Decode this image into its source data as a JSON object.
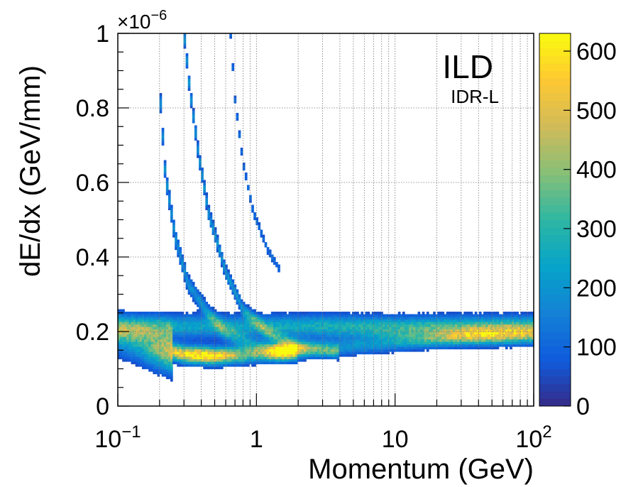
{
  "chart_data": {
    "type": "heatmap",
    "title": "",
    "xlabel": "Momentum (GeV)",
    "ylabel": "dE/dx (GeV/mm)",
    "x_scale": "log",
    "xlim": [
      0.1,
      100
    ],
    "ylim": [
      0,
      1e-06
    ],
    "y_multiplier_label": {
      "base": "×10",
      "exponent": "−6"
    },
    "x_ticks": [
      {
        "value": 0.1,
        "base": "10",
        "exponent": "−1"
      },
      {
        "value": 1,
        "base": "1",
        "exponent": ""
      },
      {
        "value": 10,
        "base": "10",
        "exponent": ""
      },
      {
        "value": 100,
        "base": "10",
        "exponent": "2"
      }
    ],
    "y_ticks": [
      {
        "value": 0,
        "label": "0"
      },
      {
        "value": 0.2,
        "label": "0.2"
      },
      {
        "value": 0.4,
        "label": "0.4"
      },
      {
        "value": 0.6,
        "label": "0.6"
      },
      {
        "value": 0.8,
        "label": "0.8"
      },
      {
        "value": 1.0,
        "label": "1"
      }
    ],
    "grid": true,
    "annotations": [
      {
        "text": "ILD",
        "position": "top-right"
      },
      {
        "text": "IDR-L",
        "position": "top-right"
      }
    ],
    "colorbar": {
      "range": [
        0,
        630
      ],
      "ticks": [
        "0",
        "100",
        "200",
        "300",
        "400",
        "500",
        "600"
      ],
      "palette": [
        "#352a87",
        "#0f5cdd",
        "#1481d6",
        "#06a4ca",
        "#2eb7a4",
        "#87bf77",
        "#d1bb59",
        "#fec832",
        "#f9fb0e"
      ]
    },
    "bands": [
      {
        "name": "",
        "points": [
          [
            0.1,
            0.21
          ],
          [
            0.2,
            0.215
          ],
          [
            0.5,
            0.215
          ],
          [
            1,
            0.215
          ],
          [
            3,
            0.215
          ],
          [
            10,
            0.21
          ],
          [
            30,
            0.21
          ],
          [
            100,
            0.21
          ]
        ]
      },
      {
        "name": "",
        "points": [
          [
            0.1,
            0.19
          ],
          [
            0.2,
            0.155
          ],
          [
            0.3,
            0.14
          ],
          [
            0.5,
            0.135
          ],
          [
            1,
            0.14
          ],
          [
            2,
            0.15
          ],
          [
            5,
            0.16
          ],
          [
            10,
            0.17
          ],
          [
            30,
            0.185
          ],
          [
            100,
            0.19
          ]
        ]
      },
      {
        "name": "",
        "points": [
          [
            0.3,
            1.0
          ],
          [
            0.33,
            0.85
          ],
          [
            0.38,
            0.68
          ],
          [
            0.45,
            0.52
          ],
          [
            0.6,
            0.36
          ],
          [
            0.8,
            0.26
          ],
          [
            1.2,
            0.2
          ],
          [
            2,
            0.16
          ],
          [
            4,
            0.145
          ]
        ]
      },
      {
        "name": "",
        "points": [
          [
            0.2,
            0.85
          ],
          [
            0.22,
            0.62
          ],
          [
            0.26,
            0.45
          ],
          [
            0.32,
            0.33
          ],
          [
            0.45,
            0.25
          ],
          [
            0.6,
            0.2
          ],
          [
            1,
            0.16
          ],
          [
            2,
            0.145
          ]
        ]
      },
      {
        "name": "",
        "points": [
          [
            0.65,
            1.0
          ],
          [
            0.7,
            0.82
          ],
          [
            0.8,
            0.65
          ],
          [
            0.95,
            0.52
          ],
          [
            1.2,
            0.42
          ],
          [
            1.5,
            0.36
          ]
        ]
      }
    ]
  }
}
